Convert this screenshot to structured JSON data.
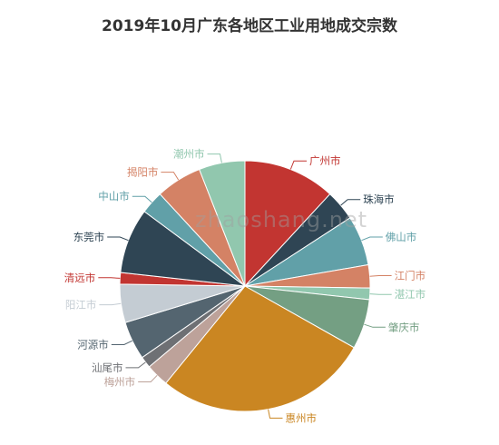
{
  "chart_data": {
    "type": "pie",
    "title": "2019年10月广东各地区工业用地成交宗数",
    "slices": [
      {
        "label": "广州市",
        "value": 12.0,
        "color": "#c23531"
      },
      {
        "label": "珠海市",
        "value": 4.0,
        "color": "#2f4554"
      },
      {
        "label": "佛山市",
        "value": 6.5,
        "color": "#61a0a8"
      },
      {
        "label": "江门市",
        "value": 3.0,
        "color": "#d48265"
      },
      {
        "label": "湛江市",
        "value": 1.5,
        "color": "#91c7ae"
      },
      {
        "label": "肇庆市",
        "value": 6.5,
        "color": "#749f83"
      },
      {
        "label": "惠州市",
        "value": 28.0,
        "color": "#ca8622"
      },
      {
        "label": "梅州市",
        "value": 3.0,
        "color": "#bda29a"
      },
      {
        "label": "汕尾市",
        "value": 1.5,
        "color": "#6e7074"
      },
      {
        "label": "河源市",
        "value": 5.0,
        "color": "#546570"
      },
      {
        "label": "阳江市",
        "value": 5.0,
        "color": "#c4ccd3"
      },
      {
        "label": "清远市",
        "value": 1.5,
        "color": "#c23531"
      },
      {
        "label": "东莞市",
        "value": 8.5,
        "color": "#2f4554"
      },
      {
        "label": "中山市",
        "value": 3.0,
        "color": "#61a0a8"
      },
      {
        "label": "揭阳市",
        "value": 6.0,
        "color": "#d48265"
      },
      {
        "label": "潮州市",
        "value": 6.0,
        "color": "#91c7ae"
      }
    ]
  },
  "watermark": "zhaoshang.net"
}
